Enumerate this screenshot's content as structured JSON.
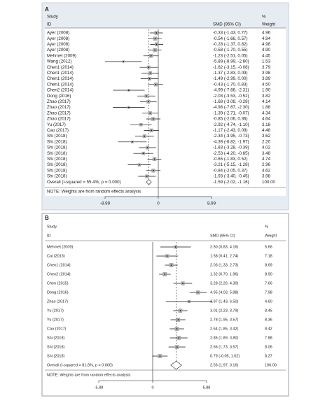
{
  "chart_data": [
    {
      "type": "forest",
      "panel_label": "A",
      "headers": {
        "study": "Study",
        "id": "ID",
        "estimate": "SMD (95% CI)",
        "pct": "%",
        "weight": "Weight"
      },
      "studies": [
        "Ayer (2008)",
        "Ayer (2008)",
        "Ayer (2008)",
        "Ayer (2008)",
        "Mehmet (2009)",
        "Wang (2012)",
        "Chen1 (2014)",
        "Chen1 (2014)",
        "Chen1 (2014)",
        "Chen1 (2014)",
        "Chen2 (2014)",
        "Dong (2016)",
        "Zhao (2017)",
        "Zhao (2017)",
        "Zhao (2017)",
        "Zhao (2017)",
        "Yu (2017)",
        "Cao (2017)",
        "Shi (2018)",
        "Shi (2018)",
        "Shi (2018)",
        "Shi (2018)",
        "Shi (2018)",
        "Shi (2018)",
        "Shi (2018)",
        "Shi (2018)"
      ],
      "estimates": [
        -0.33,
        -0.54,
        -0.28,
        -0.58,
        -1.23,
        -5.89,
        -1.62,
        -1.37,
        -1.49,
        -0.43,
        -4.99,
        -2.03,
        -1.68,
        -4.98,
        -1.39,
        -0.85,
        -2.92,
        -1.17,
        -2.34,
        -4.39,
        -1.83,
        -2.53,
        -0.65,
        -3.21,
        -0.84,
        -1.93
      ],
      "lower": [
        -1.43,
        -1.66,
        -1.37,
        -1.7,
        -2.51,
        -8.99,
        -3.15,
        -2.83,
        -2.99,
        -1.7,
        -7.66,
        -3.53,
        -3.08,
        -7.67,
        -2.71,
        -2.06,
        -4.74,
        -2.43,
        -3.95,
        -6.82,
        -3.28,
        -4.2,
        -1.83,
        -5.15,
        -2.05,
        -3.4
      ],
      "upper": [
        0.77,
        0.57,
        0.82,
        0.55,
        0.05,
        -2.8,
        -0.08,
        0.09,
        0.0,
        0.83,
        -2.31,
        -0.52,
        -0.28,
        -2.3,
        -0.07,
        0.36,
        -1.1,
        0.09,
        -0.73,
        -1.97,
        -0.39,
        -0.85,
        0.52,
        -1.28,
        0.37,
        -0.45
      ],
      "ci_labels": [
        "-0.33 (-1.43, 0.77)",
        "-0.54 (-1.66, 0.57)",
        "-0.28 (-1.37, 0.82)",
        "-0.58 (-1.70, 0.55)",
        "-1.23 (-2.51, 0.05)",
        "-5.89 (-8.99, -2.80)",
        "-1.62 (-3.15, -0.08)",
        "-1.37 (-2.83, 0.09)",
        "-1.49 (-2.99, 0.00)",
        "-0.43 (-1.70, 0.83)",
        "-4.99 (-7.66, -2.31)",
        "-2.03 (-3.53, -0.52)",
        "-1.68 (-3.08, -0.28)",
        "-4.98 (-7.67, -2.30)",
        "-1.39 (-2.71, -0.07)",
        "-0.85 (-2.06, 0.36)",
        "-2.92 (-4.74, -1.10)",
        "-1.17 (-2.43, 0.09)",
        "-2.34 (-3.95, -0.73)",
        "-4.39 (-6.82, -1.97)",
        "-1.83 (-3.28, -0.39)",
        "-2.53 (-4.20, -0.85)",
        "-0.65 (-1.83, 0.52)",
        "-3.21 (-5.15, -1.28)",
        "-0.84 (-2.05, 0.37)",
        "-1.93 (-3.40, -0.45)"
      ],
      "weights": [
        4.96,
        4.94,
        4.98,
        4.9,
        4.45,
        1.53,
        3.79,
        3.98,
        3.89,
        4.5,
        1.9,
        3.82,
        4.14,
        1.88,
        4.34,
        4.64,
        3.18,
        4.48,
        3.62,
        2.2,
        4.02,
        3.48,
        4.74,
        2.96,
        4.62,
        3.98
      ],
      "weight_labels": [
        "4.96",
        "4.94",
        "4.98",
        "4.90",
        "4.45",
        "1.53",
        "3.79",
        "3.98",
        "3.89",
        "4.50",
        "1.90",
        "3.82",
        "4.14",
        "1.88",
        "4.34",
        "4.64",
        "3.18",
        "4.48",
        "3.62",
        "2.20",
        "4.02",
        "3.48",
        "4.74",
        "2.96",
        "4.62",
        "3.98"
      ],
      "overall": {
        "label": "Overall  (I-squared = 55.4%, p = 0.000)",
        "estimate": -1.59,
        "lower": -2.02,
        "upper": -1.16,
        "ci_label": "-1.59 (-2.02, -1.16)",
        "weight": 100,
        "weight_label": "100.00"
      },
      "note": "NOTE: Weights are from random effects analysis",
      "xlim": [
        -8.99,
        8.99
      ],
      "xticks": [
        -8.99,
        0,
        8.99
      ]
    },
    {
      "type": "forest",
      "panel_label": "B",
      "headers": {
        "study": "Study",
        "id": "ID",
        "estimate": "SMD (95% CI)",
        "pct": "%",
        "weight": "Weight"
      },
      "studies": [
        "Mehmet (2009)",
        "Cai (2013)",
        "Chen1 (2014)",
        "Chen2 (2014)",
        "Chen (2015)",
        "Dong (2016)",
        "Zhao (2017)",
        "Yu (2017)",
        "Yu (2017)",
        "Cao (2017)",
        "Shi (2018)",
        "Shi (2018)",
        "Shi (2018)"
      ],
      "estimates": [
        2.5,
        1.58,
        2.03,
        1.32,
        3.28,
        4.95,
        3.97,
        3.01,
        2.78,
        2.64,
        2.85,
        2.66,
        0.79
      ],
      "lower": [
        0.83,
        0.41,
        1.33,
        0.7,
        2.26,
        4.03,
        1.43,
        2.23,
        1.95,
        1.85,
        1.89,
        1.73,
        -0.05
      ],
      "upper": [
        4.16,
        2.74,
        2.73,
        1.96,
        4.3,
        5.88,
        6.5,
        3.79,
        3.57,
        3.42,
        3.8,
        3.57,
        1.62
      ],
      "ci_labels": [
        "2.50 (0.83, 4.16)",
        "1.58 (0.41, 2.74)",
        "2.03 (1.33, 2.73)",
        "1.32 (0.70, 1.96)",
        "3.28 (2.26, 4.30)",
        "4.95 (4.03, 5.88)",
        "3.97 (1.43, 6.50)",
        "3.01 (2.23, 3.79)",
        "2.78 (1.95, 3.57)",
        "2.64 (1.85, 3.42)",
        "2.85 (1.89, 3.80)",
        "2.66 (1.73, 3.57)",
        "0.79 (-0.05, 1.62)"
      ],
      "weights": [
        5.66,
        7.18,
        8.69,
        8.9,
        7.66,
        7.98,
        4.6,
        8.45,
        8.36,
        8.42,
        7.88,
        8.06,
        8.27
      ],
      "weight_labels": [
        "5.66",
        "7.18",
        "8.69",
        "8.90",
        "7.66",
        "7.98",
        "4.60",
        "8.45",
        "8.36",
        "8.42",
        "7.88",
        "8.06",
        "8.27"
      ],
      "overall": {
        "label": "Overall  (I-squared = 81.8%, p = 0.000)",
        "estimate": 2.56,
        "lower": 1.97,
        "upper": 3.16,
        "ci_label": "2.56 (1.97, 3.16)",
        "weight": 100,
        "weight_label": "100.00"
      },
      "note": "NOTE: Weights are from random effects analysis",
      "xlim": [
        -5.88,
        5.88
      ],
      "xticks": [
        -5.88,
        0,
        5.88
      ]
    }
  ]
}
